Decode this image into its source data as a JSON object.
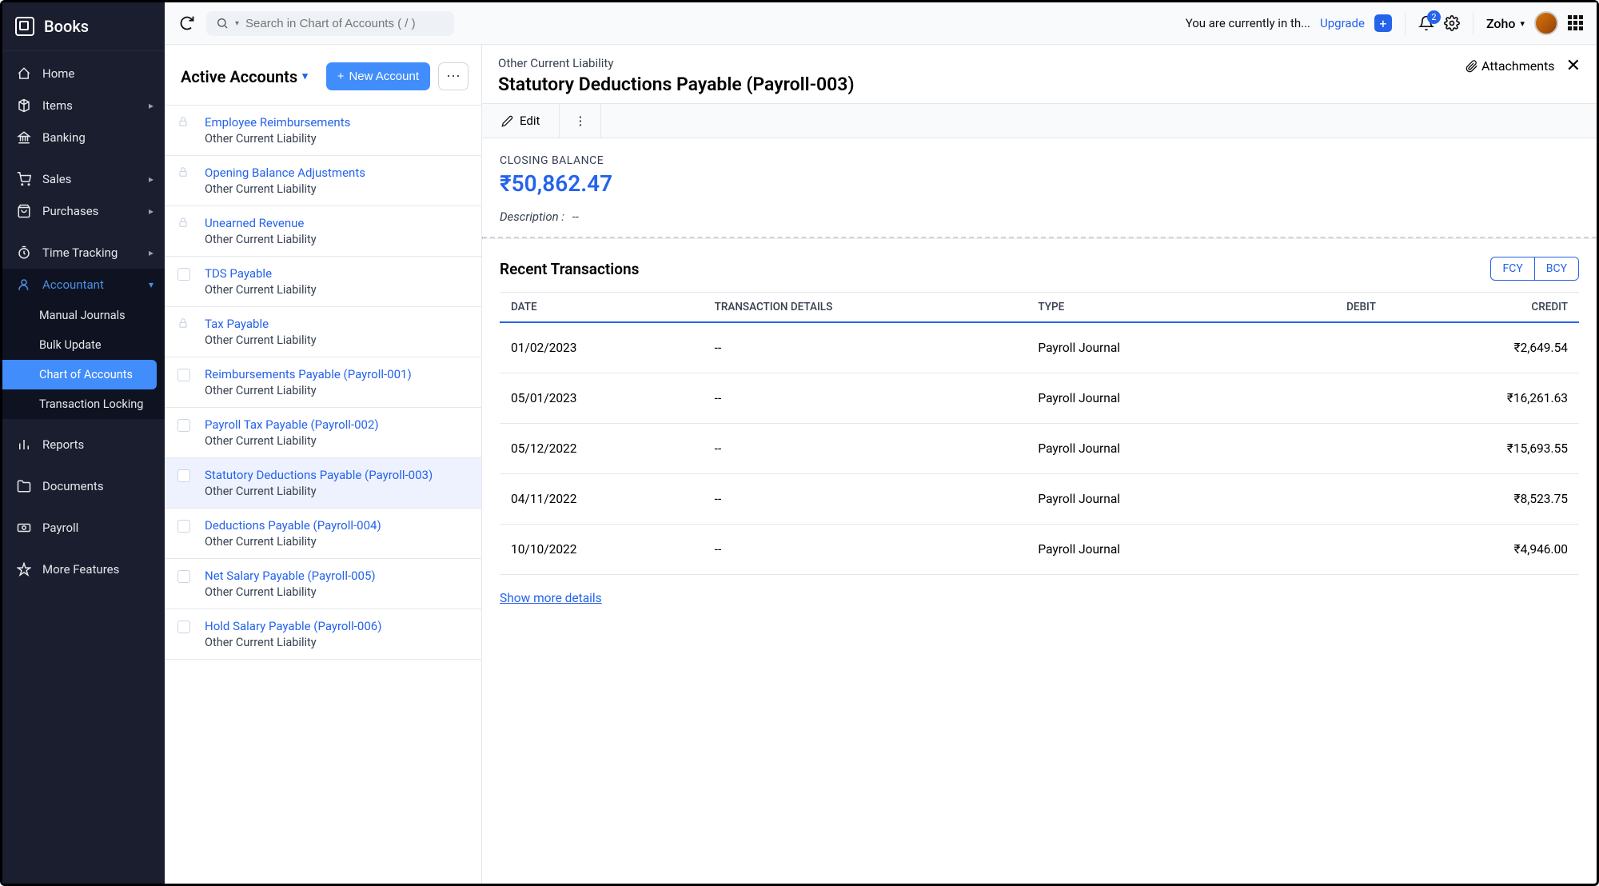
{
  "brand": {
    "name": "Books"
  },
  "nav": {
    "items": [
      {
        "label": "Home",
        "icon": "home"
      },
      {
        "label": "Items",
        "icon": "items",
        "hasSub": true
      },
      {
        "label": "Banking",
        "icon": "banking"
      }
    ],
    "spacer1": true,
    "items2": [
      {
        "label": "Sales",
        "icon": "sales",
        "hasSub": true
      },
      {
        "label": "Purchases",
        "icon": "purchases",
        "hasSub": true
      }
    ],
    "spacer2": true,
    "items3": [
      {
        "label": "Time Tracking",
        "icon": "time",
        "hasSub": true
      },
      {
        "label": "Accountant",
        "icon": "accountant",
        "hasSub": true,
        "expanded": true
      }
    ],
    "accountantSub": [
      {
        "label": "Manual Journals"
      },
      {
        "label": "Bulk Update"
      },
      {
        "label": "Chart of Accounts",
        "active": true
      },
      {
        "label": "Transaction Locking"
      }
    ],
    "items4": [
      {
        "label": "Reports",
        "icon": "reports"
      },
      {
        "label": "Documents",
        "icon": "documents"
      },
      {
        "label": "Payroll",
        "icon": "payroll"
      },
      {
        "label": "More Features",
        "icon": "more"
      }
    ]
  },
  "topbar": {
    "searchPlaceholder": "Search in Chart of Accounts ( / )",
    "trialText": "You are currently in th...",
    "upgrade": "Upgrade",
    "notifCount": "2",
    "orgName": "Zoho"
  },
  "list": {
    "title": "Active Accounts",
    "newBtn": "New Account",
    "accounts": [
      {
        "name": "Employee Reimbursements",
        "type": "Other Current Liability",
        "locked": true
      },
      {
        "name": "Opening Balance Adjustments",
        "type": "Other Current Liability",
        "locked": true
      },
      {
        "name": "Unearned Revenue",
        "type": "Other Current Liability",
        "locked": true
      },
      {
        "name": "TDS Payable",
        "type": "Other Current Liability"
      },
      {
        "name": "Tax Payable",
        "type": "Other Current Liability",
        "locked": true
      },
      {
        "name": "Reimbursements Payable (Payroll-001)",
        "type": "Other Current Liability"
      },
      {
        "name": "Payroll Tax Payable (Payroll-002)",
        "type": "Other Current Liability"
      },
      {
        "name": "Statutory Deductions Payable (Payroll-003)",
        "type": "Other Current Liability",
        "selected": true
      },
      {
        "name": "Deductions Payable (Payroll-004)",
        "type": "Other Current Liability"
      },
      {
        "name": "Net Salary Payable (Payroll-005)",
        "type": "Other Current Liability"
      },
      {
        "name": "Hold Salary Payable (Payroll-006)",
        "type": "Other Current Liability"
      }
    ]
  },
  "detail": {
    "category": "Other Current Liability",
    "title": "Statutory Deductions Payable (Payroll-003)",
    "attachments": "Attachments",
    "edit": "Edit",
    "closingBalanceLabel": "CLOSING BALANCE",
    "closingBalance": "₹50,862.47",
    "descriptionLabel": "Description :",
    "descriptionValue": "--",
    "txTitle": "Recent Transactions",
    "fcy": "FCY",
    "bcy": "BCY",
    "columns": {
      "date": "DATE",
      "details": "TRANSACTION DETAILS",
      "type": "TYPE",
      "debit": "DEBIT",
      "credit": "CREDIT"
    },
    "rows": [
      {
        "date": "01/02/2023",
        "details": "--",
        "type": "Payroll Journal",
        "debit": "",
        "credit": "₹2,649.54"
      },
      {
        "date": "05/01/2023",
        "details": "--",
        "type": "Payroll Journal",
        "debit": "",
        "credit": "₹16,261.63"
      },
      {
        "date": "05/12/2022",
        "details": "--",
        "type": "Payroll Journal",
        "debit": "",
        "credit": "₹15,693.55"
      },
      {
        "date": "04/11/2022",
        "details": "--",
        "type": "Payroll Journal",
        "debit": "",
        "credit": "₹8,523.75"
      },
      {
        "date": "10/10/2022",
        "details": "--",
        "type": "Payroll Journal",
        "debit": "",
        "credit": "₹4,946.00"
      }
    ],
    "showMore": "Show more details"
  }
}
